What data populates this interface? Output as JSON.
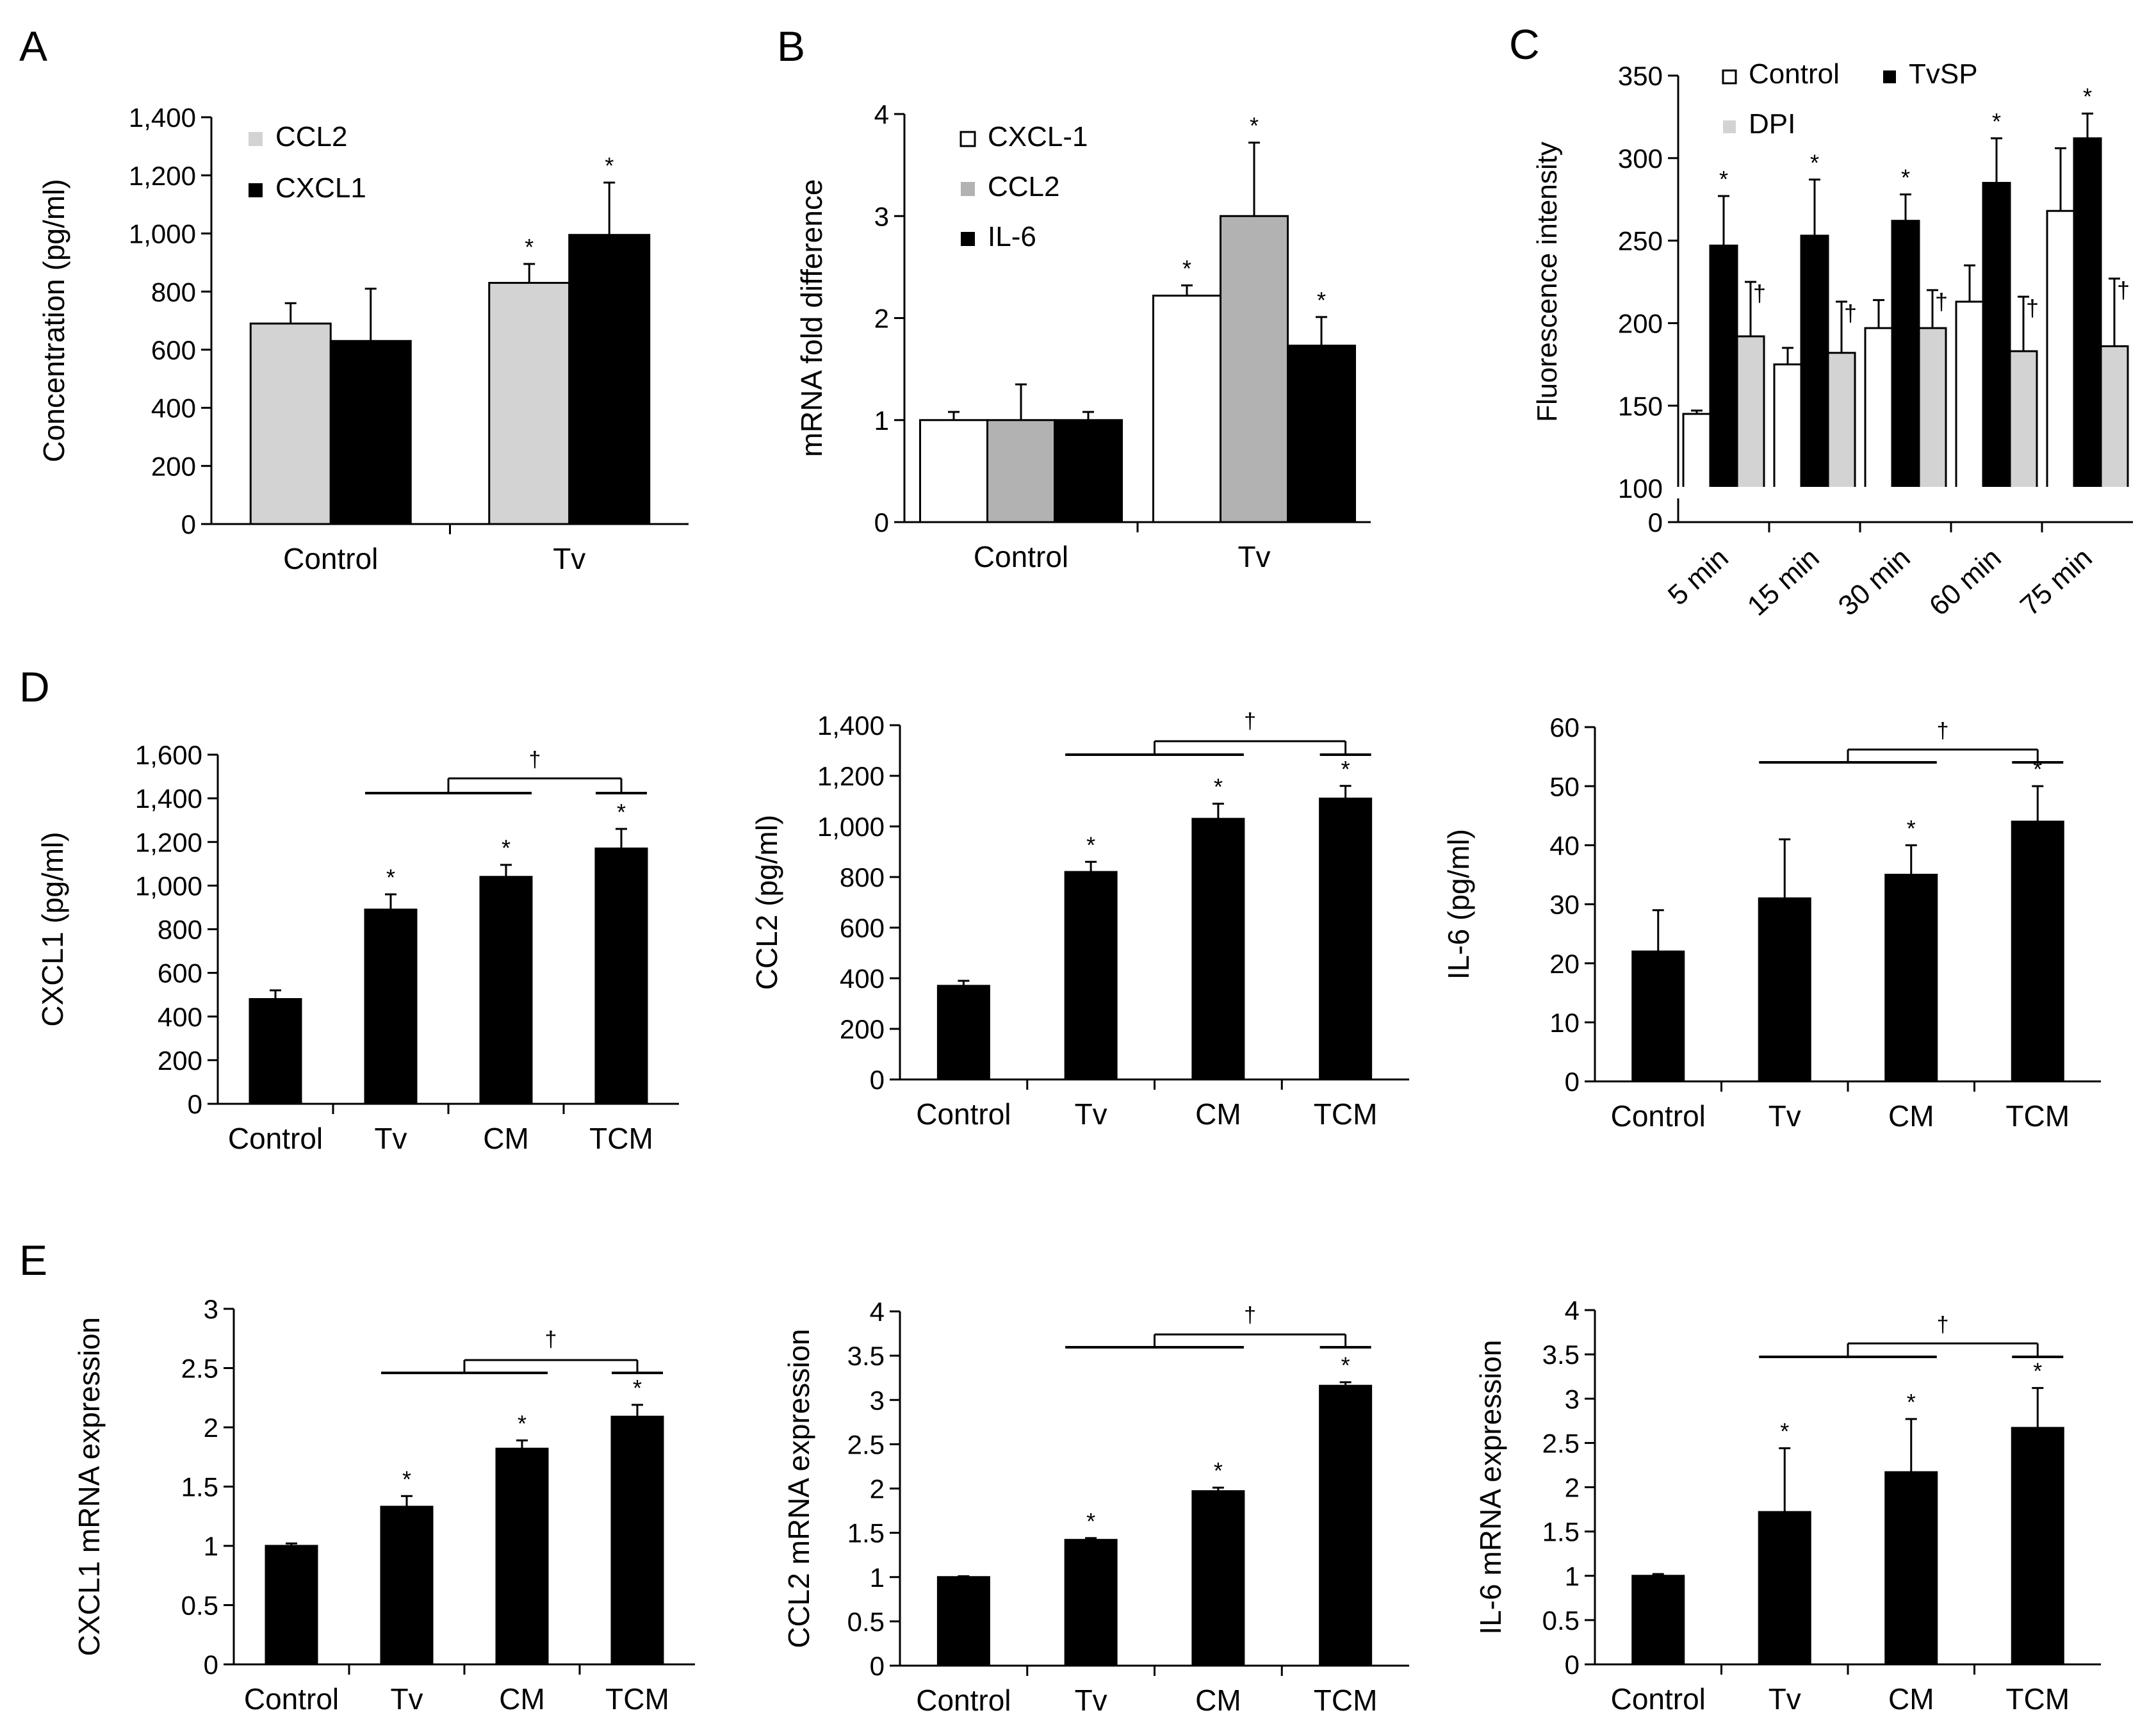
{
  "colors": {
    "white": "#ffffff",
    "light": "#d3d3d3",
    "mid": "#b2b2b2",
    "black": "#000000"
  },
  "chart_data": [
    {
      "id": "A",
      "panel_label": "A",
      "type": "bar",
      "ylabel": "Concentration (pg/ml)",
      "categories": [
        "Control",
        "Tv"
      ],
      "ylim": [
        0,
        1400
      ],
      "yticks": [
        0,
        200,
        400,
        600,
        800,
        1000,
        1200,
        1400
      ],
      "ytick_labels": [
        "0",
        "200",
        "400",
        "600",
        "800",
        "1,000",
        "1,200",
        "1,400"
      ],
      "series": [
        {
          "name": "CCL2",
          "color": "light",
          "values": [
            690,
            830
          ],
          "errors": [
            70,
            65
          ],
          "marks": [
            "",
            "*"
          ]
        },
        {
          "name": "CXCL1",
          "color": "black",
          "values": [
            630,
            995
          ],
          "errors": [
            180,
            180
          ],
          "marks": [
            "",
            "*"
          ]
        }
      ]
    },
    {
      "id": "B",
      "panel_label": "B",
      "type": "bar",
      "ylabel": "mRNA fold difference",
      "categories": [
        "Control",
        "Tv"
      ],
      "ylim": [
        0,
        4
      ],
      "yticks": [
        0,
        1,
        2,
        3,
        4
      ],
      "ytick_labels": [
        "0",
        "1",
        "2",
        "3",
        "4"
      ],
      "series": [
        {
          "name": "CXCL-1",
          "color": "white",
          "values": [
            1.0,
            2.22
          ],
          "errors": [
            0.08,
            0.1
          ],
          "marks": [
            "",
            "*"
          ]
        },
        {
          "name": "CCL2",
          "color": "mid",
          "values": [
            1.0,
            3.0
          ],
          "errors": [
            0.35,
            0.72
          ],
          "marks": [
            "",
            "*"
          ]
        },
        {
          "name": "IL-6",
          "color": "black",
          "values": [
            1.0,
            1.73
          ],
          "errors": [
            0.08,
            0.28
          ],
          "marks": [
            "",
            "*"
          ]
        }
      ]
    },
    {
      "id": "C",
      "panel_label": "C",
      "type": "bar",
      "ylabel": "Fluorescence intensity",
      "categories": [
        "5 min",
        "15 min",
        "30 min",
        "60 min",
        "75 min"
      ],
      "ylim": [
        100,
        350
      ],
      "axis_break": true,
      "yticks": [
        100,
        150,
        200,
        250,
        300,
        350
      ],
      "ytick_labels": [
        "100",
        "150",
        "200",
        "250",
        "300",
        "350"
      ],
      "zero_label": "0",
      "series": [
        {
          "name": "Control",
          "color": "white",
          "values": [
            145,
            175,
            197,
            213,
            268
          ],
          "errors": [
            2,
            10,
            17,
            22,
            38
          ],
          "marks": [
            "",
            "",
            "",
            "",
            ""
          ]
        },
        {
          "name": "TvSP",
          "color": "black",
          "values": [
            247,
            253,
            262,
            285,
            312
          ],
          "errors": [
            30,
            34,
            16,
            27,
            15
          ],
          "marks": [
            "*",
            "*",
            "*",
            "*",
            "*"
          ]
        },
        {
          "name": "DPI",
          "color": "light",
          "values": [
            192,
            182,
            197,
            183,
            186
          ],
          "errors": [
            33,
            31,
            23,
            33,
            41
          ],
          "marks": [
            "†",
            "†",
            "†",
            "†",
            "†"
          ]
        }
      ]
    },
    {
      "id": "D1",
      "panel_label": "D",
      "type": "bar",
      "ylabel": "CXCL1 (pg/ml)",
      "categories": [
        "Control",
        "Tv",
        "CM",
        "TCM"
      ],
      "ylim": [
        0,
        1600
      ],
      "yticks": [
        0,
        200,
        400,
        600,
        800,
        1000,
        1200,
        1400,
        1600
      ],
      "ytick_labels": [
        "0",
        "200",
        "400",
        "600",
        "800",
        "1,000",
        "1,200",
        "1,400",
        "1,600"
      ],
      "series": [
        {
          "name": "",
          "color": "black",
          "values": [
            480,
            890,
            1040,
            1170
          ],
          "errors": [
            40,
            70,
            55,
            90
          ],
          "marks": [
            "",
            "*",
            "*",
            "*"
          ]
        }
      ],
      "bracket_label": "†"
    },
    {
      "id": "D2",
      "panel_label": "",
      "type": "bar",
      "ylabel": "CCL2 (pg/ml)",
      "categories": [
        "Control",
        "Tv",
        "CM",
        "TCM"
      ],
      "ylim": [
        0,
        1400
      ],
      "yticks": [
        0,
        200,
        400,
        600,
        800,
        1000,
        1200,
        1400
      ],
      "ytick_labels": [
        "0",
        "200",
        "400",
        "600",
        "800",
        "1,000",
        "1,200",
        "1,400"
      ],
      "series": [
        {
          "name": "",
          "color": "black",
          "values": [
            370,
            820,
            1030,
            1110
          ],
          "errors": [
            20,
            40,
            60,
            50
          ],
          "marks": [
            "",
            "*",
            "*",
            "*"
          ]
        }
      ],
      "bracket_label": "†"
    },
    {
      "id": "D3",
      "panel_label": "",
      "type": "bar",
      "ylabel": "IL-6 (pg/ml)",
      "categories": [
        "Control",
        "Tv",
        "CM",
        "TCM"
      ],
      "ylim": [
        0,
        60
      ],
      "yticks": [
        0,
        10,
        20,
        30,
        40,
        50,
        60
      ],
      "ytick_labels": [
        "0",
        "10",
        "20",
        "30",
        "40",
        "50",
        "60"
      ],
      "series": [
        {
          "name": "",
          "color": "black",
          "values": [
            22,
            31,
            35,
            44
          ],
          "errors": [
            7,
            10,
            5,
            6
          ],
          "marks": [
            "",
            "",
            "*",
            "*"
          ]
        }
      ],
      "bracket_label": "†"
    },
    {
      "id": "E1",
      "panel_label": "E",
      "type": "bar",
      "ylabel": "CXCL1 mRNA expression",
      "categories": [
        "Control",
        "Tv",
        "CM",
        "TCM"
      ],
      "ylim": [
        0,
        3
      ],
      "yticks": [
        0,
        0.5,
        1,
        1.5,
        2,
        2.5,
        3
      ],
      "ytick_labels": [
        "0",
        "0.5",
        "1",
        "1.5",
        "2",
        "2.5",
        "3"
      ],
      "series": [
        {
          "name": "",
          "color": "black",
          "values": [
            1.0,
            1.33,
            1.82,
            2.09
          ],
          "errors": [
            0.02,
            0.09,
            0.07,
            0.1
          ],
          "marks": [
            "",
            "*",
            "*",
            "*"
          ]
        }
      ],
      "bracket_label": "†"
    },
    {
      "id": "E2",
      "panel_label": "",
      "type": "bar",
      "ylabel": "CCL2 mRNA expression",
      "categories": [
        "Control",
        "Tv",
        "CM",
        "TCM"
      ],
      "ylim": [
        0,
        4
      ],
      "yticks": [
        0,
        0.5,
        1,
        1.5,
        2,
        2.5,
        3,
        3.5,
        4
      ],
      "ytick_labels": [
        "0",
        "0.5",
        "1",
        "1.5",
        "2",
        "2.5",
        "3",
        "3.5",
        "4"
      ],
      "series": [
        {
          "name": "",
          "color": "black",
          "values": [
            1.0,
            1.42,
            1.97,
            3.16
          ],
          "errors": [
            0.01,
            0.02,
            0.04,
            0.04
          ],
          "marks": [
            "",
            "*",
            "*",
            "*"
          ]
        }
      ],
      "bracket_label": "†"
    },
    {
      "id": "E3",
      "panel_label": "",
      "type": "bar",
      "ylabel": "IL-6 mRNA expression",
      "categories": [
        "Control",
        "Tv",
        "CM",
        "TCM"
      ],
      "ylim": [
        0,
        4
      ],
      "yticks": [
        0,
        0.5,
        1,
        1.5,
        2,
        2.5,
        3,
        3.5,
        4
      ],
      "ytick_labels": [
        "0",
        "0.5",
        "1",
        "1.5",
        "2",
        "2.5",
        "3",
        "3.5",
        "4"
      ],
      "series": [
        {
          "name": "",
          "color": "black",
          "values": [
            1.0,
            1.72,
            2.17,
            2.67
          ],
          "errors": [
            0.02,
            0.72,
            0.6,
            0.45
          ],
          "marks": [
            "",
            "*",
            "*",
            "*"
          ]
        }
      ],
      "bracket_label": "†"
    }
  ]
}
